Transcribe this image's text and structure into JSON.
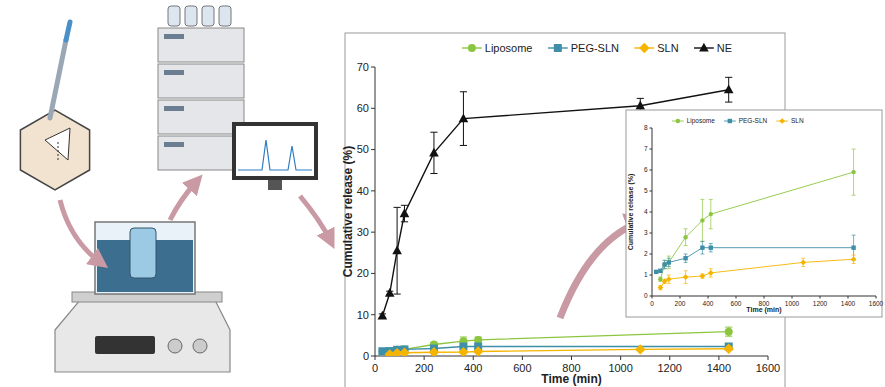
{
  "chart_data": [
    {
      "type": "line",
      "xlabel": "Time (min)",
      "ylabel": "Cumulative release (%)",
      "xlim": [
        0,
        1600
      ],
      "xticks": [
        0,
        200,
        400,
        600,
        800,
        1000,
        1200,
        1400,
        1600
      ],
      "ylim": [
        0,
        70
      ],
      "yticks": [
        0,
        10,
        20,
        30,
        40,
        50,
        60,
        70
      ],
      "grid": false,
      "legend": "top",
      "series": [
        {
          "name": "Liposome",
          "color": "#8cc63f",
          "marker": "circle",
          "x": [
            60,
            90,
            120,
            240,
            360,
            420,
            1440
          ],
          "values": [
            0.8,
            1.5,
            1.6,
            2.8,
            3.6,
            3.9,
            5.9
          ],
          "errors": [
            0.1,
            0.2,
            0.3,
            0.4,
            1.0,
            0.7,
            1.1
          ]
        },
        {
          "name": "PEG-SLN",
          "color": "#3f8fa8",
          "marker": "square",
          "x": [
            30,
            60,
            90,
            120,
            240,
            360,
            420,
            1440
          ],
          "values": [
            1.15,
            1.2,
            1.5,
            1.6,
            1.8,
            2.3,
            2.3,
            2.3
          ],
          "errors": [
            0.05,
            0.05,
            0.2,
            0.2,
            0.2,
            0.3,
            0.2,
            0.6
          ]
        },
        {
          "name": "SLN",
          "color": "#f5b400",
          "marker": "diamond",
          "x": [
            60,
            90,
            120,
            240,
            360,
            420,
            1080,
            1440
          ],
          "values": [
            0.4,
            0.7,
            0.8,
            0.9,
            0.95,
            1.1,
            1.6,
            1.75
          ],
          "errors": [
            0.1,
            0.1,
            0.2,
            0.3,
            0.1,
            0.2,
            0.2,
            0.2
          ]
        },
        {
          "name": "NE",
          "color": "#111111",
          "marker": "triangle",
          "x": [
            30,
            60,
            90,
            120,
            240,
            360,
            1080,
            1440
          ],
          "values": [
            9.7,
            15.2,
            25.5,
            34.5,
            49.2,
            57.5,
            60.6,
            64.5
          ],
          "errors": [
            0.5,
            0.5,
            10.5,
            2,
            5,
            6.5,
            1.8,
            3
          ]
        }
      ]
    },
    {
      "type": "line",
      "xlabel": "Time (min)",
      "ylabel": "Cumulative release (%)",
      "xlim": [
        0,
        1600
      ],
      "xticks": [
        0,
        200,
        400,
        600,
        800,
        1000,
        1200,
        1400,
        1600
      ],
      "ylim": [
        0,
        8
      ],
      "yticks": [
        0,
        1,
        2,
        3,
        4,
        5,
        6,
        7,
        8
      ],
      "grid": false,
      "legend": "top left",
      "series": [
        {
          "name": "Liposome",
          "color": "#8cc63f",
          "marker": "circle",
          "x": [
            60,
            90,
            120,
            240,
            360,
            420,
            1440
          ],
          "values": [
            0.8,
            1.5,
            1.6,
            2.8,
            3.6,
            3.9,
            5.9
          ],
          "errors": [
            0.1,
            0.2,
            0.3,
            0.4,
            1.0,
            0.7,
            1.1
          ]
        },
        {
          "name": "PEG-SLN",
          "color": "#3f8fa8",
          "marker": "square",
          "x": [
            30,
            60,
            90,
            120,
            240,
            360,
            420,
            1440
          ],
          "values": [
            1.15,
            1.2,
            1.5,
            1.6,
            1.8,
            2.3,
            2.3,
            2.3
          ],
          "errors": [
            0.05,
            0.05,
            0.2,
            0.2,
            0.2,
            0.3,
            0.2,
            0.6
          ]
        },
        {
          "name": "SLN",
          "color": "#f5b400",
          "marker": "diamond",
          "x": [
            60,
            90,
            120,
            240,
            360,
            420,
            1080,
            1440
          ],
          "values": [
            0.4,
            0.7,
            0.8,
            0.9,
            0.95,
            1.1,
            1.6,
            1.75
          ],
          "errors": [
            0.1,
            0.1,
            0.2,
            0.3,
            0.1,
            0.2,
            0.2,
            0.2
          ]
        }
      ]
    }
  ]
}
